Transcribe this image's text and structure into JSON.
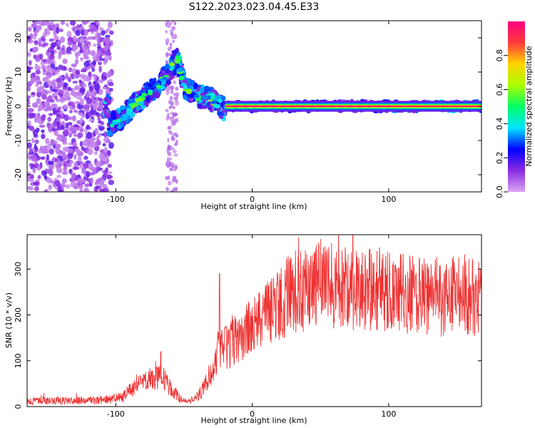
{
  "title": "S122.2023.023.04.45.E33",
  "chart_data": [
    {
      "type": "heatmap",
      "xlabel": "Height of straight line (km)",
      "ylabel": "Frequency (Hz)",
      "xlim": [
        -165,
        168
      ],
      "ylim": [
        -25,
        25
      ],
      "xticks": [
        -100,
        0,
        100
      ],
      "yticks": [
        -20,
        -10,
        0,
        10,
        20
      ],
      "colorbar": {
        "label": "Normalized spectral amplitude",
        "range": [
          0,
          1
        ],
        "ticks": [
          0.0,
          0.2,
          0.4,
          0.6,
          0.8
        ],
        "colors": [
          "#d9a6f2",
          "#8a2be2",
          "#0000ff",
          "#00e5ff",
          "#00ff66",
          "#aaff00",
          "#ffd400",
          "#ff3b3b",
          "#ff0080"
        ]
      },
      "ridge": [
        {
          "x": -105,
          "freq": -5.5
        },
        {
          "x": -95,
          "freq": -3
        },
        {
          "x": -85,
          "freq": 1
        },
        {
          "x": -75,
          "freq": 4
        },
        {
          "x": -65,
          "freq": 8
        },
        {
          "x": -55,
          "freq": 14
        },
        {
          "x": -50,
          "freq": 6
        },
        {
          "x": -40,
          "freq": 3
        },
        {
          "x": -30,
          "freq": 2
        },
        {
          "x": -20,
          "freq": -1
        },
        {
          "x": 0,
          "freq": 0
        },
        {
          "x": 20,
          "freq": 0.5
        },
        {
          "x": 50,
          "freq": 0
        },
        {
          "x": 100,
          "freq": 0
        },
        {
          "x": 168,
          "freq": 0
        }
      ]
    },
    {
      "type": "line",
      "xlabel": "Height of straight line (km)",
      "ylabel": "SNR (10 * v/v)",
      "xlim": [
        -165,
        168
      ],
      "ylim": [
        0,
        375
      ],
      "xticks": [
        -100,
        0,
        100
      ],
      "yticks": [
        0,
        100,
        200,
        300
      ],
      "series": [
        {
          "color": "#ee3333",
          "envelope": [
            {
              "x": -165,
              "y": 12
            },
            {
              "x": -110,
              "y": 14
            },
            {
              "x": -95,
              "y": 20
            },
            {
              "x": -88,
              "y": 40
            },
            {
              "x": -78,
              "y": 55
            },
            {
              "x": -66,
              "y": 65
            },
            {
              "x": -60,
              "y": 40
            },
            {
              "x": -52,
              "y": 15
            },
            {
              "x": -45,
              "y": 12
            },
            {
              "x": -38,
              "y": 30
            },
            {
              "x": -30,
              "y": 75
            },
            {
              "x": -25,
              "y": 120
            },
            {
              "x": -18,
              "y": 130
            },
            {
              "x": -10,
              "y": 150
            },
            {
              "x": 0,
              "y": 170
            },
            {
              "x": 10,
              "y": 200
            },
            {
              "x": 20,
              "y": 225
            },
            {
              "x": 28,
              "y": 245
            },
            {
              "x": 35,
              "y": 255
            },
            {
              "x": 50,
              "y": 265
            },
            {
              "x": 70,
              "y": 262
            },
            {
              "x": 100,
              "y": 250
            },
            {
              "x": 130,
              "y": 240
            },
            {
              "x": 168,
              "y": 240
            }
          ],
          "peaks": [
            {
              "x": -67,
              "y": 120
            },
            {
              "x": -24,
              "y": 290
            },
            {
              "x": 34,
              "y": 370
            },
            {
              "x": 52,
              "y": 312
            }
          ]
        }
      ]
    }
  ]
}
